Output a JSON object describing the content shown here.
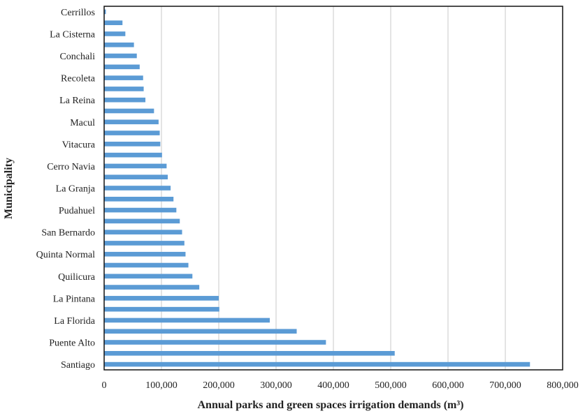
{
  "chart_data": {
    "type": "bar",
    "orientation": "horizontal",
    "xlabel": "Annual parks and green spaces irrigation  demands (m³)",
    "ylabel": "Municipality",
    "xlim": [
      0,
      800000
    ],
    "x_ticks": [
      0,
      100000,
      200000,
      300000,
      400000,
      500000,
      600000,
      700000,
      800000
    ],
    "x_tick_labels": [
      "0",
      "100,000",
      "200,000",
      "300,000",
      "400,000",
      "500,000",
      "600,000",
      "700,000",
      "800,000"
    ],
    "grid": "vertical",
    "legend": "none",
    "bar_color": "#5b9bd5",
    "categories": [
      "Cerrillos",
      "",
      "La Cisterna",
      "",
      "Conchali",
      "",
      "Recoleta",
      "",
      "La Reina",
      "",
      "Macul",
      "",
      "Vitacura",
      "",
      "Cerro Navia",
      "",
      "La Granja",
      "",
      "Pudahuel",
      "",
      "San Bernardo",
      "",
      "Quinta Normal",
      "",
      "Quilicura",
      "",
      "La Pintana",
      "",
      "La Florida",
      "",
      "Puente Alto",
      "",
      "Santiago"
    ],
    "values": [
      3000,
      32000,
      37000,
      52000,
      57000,
      62000,
      68000,
      69000,
      72000,
      87000,
      95000,
      97000,
      98000,
      101000,
      109000,
      111000,
      116000,
      121000,
      126000,
      132000,
      136000,
      140000,
      142000,
      147000,
      154000,
      166000,
      200000,
      201000,
      289000,
      336000,
      387000,
      507000,
      743000
    ]
  }
}
